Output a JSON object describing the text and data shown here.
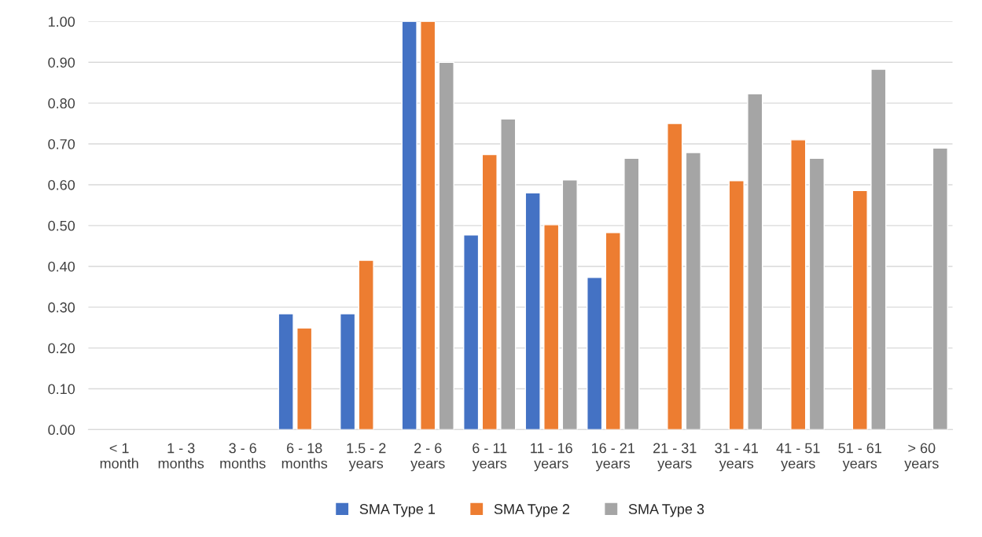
{
  "chart_data": {
    "type": "bar",
    "categories": [
      "< 1\nmonth",
      "1 - 3\nmonths",
      "3 - 6\nmonths",
      "6 - 18\nmonths",
      "1.5 - 2\nyears",
      "2 - 6\nyears",
      "6 - 11\nyears",
      "11 - 16\nyears",
      "16 - 21\nyears",
      "21 - 31\nyears",
      "31 - 41\nyears",
      "41 - 51\nyears",
      "51 - 61\nyears",
      "> 60\nyears"
    ],
    "series": [
      {
        "name": "SMA Type 1",
        "color": "#4472c4",
        "values": [
          null,
          null,
          null,
          0.284,
          0.284,
          1.0,
          0.477,
          0.58,
          0.373,
          null,
          null,
          null,
          null,
          null
        ]
      },
      {
        "name": "SMA Type 2",
        "color": "#ed7d31",
        "values": [
          null,
          null,
          null,
          0.249,
          0.415,
          1.0,
          0.674,
          0.502,
          0.483,
          0.75,
          0.61,
          0.71,
          0.586,
          null
        ]
      },
      {
        "name": "SMA Type 3",
        "color": "#a5a5a5",
        "values": [
          null,
          null,
          null,
          null,
          null,
          0.9,
          0.761,
          0.612,
          0.665,
          0.679,
          0.823,
          0.665,
          0.883,
          0.69
        ]
      }
    ],
    "ylim": [
      0,
      1.0
    ],
    "yticks": [
      {
        "value": 0,
        "label": "0.00"
      },
      {
        "value": 0.1,
        "label": "0.10"
      },
      {
        "value": 0.2,
        "label": "0.20"
      },
      {
        "value": 0.3,
        "label": "0.30"
      },
      {
        "value": 0.4,
        "label": "0.40"
      },
      {
        "value": 0.5,
        "label": "0.50"
      },
      {
        "value": 0.6,
        "label": "0.60"
      },
      {
        "value": 0.7,
        "label": "0.70"
      },
      {
        "value": 0.8,
        "label": "0.80"
      },
      {
        "value": 0.9,
        "label": "0.90"
      },
      {
        "value": 1.0,
        "label": "1.00"
      }
    ],
    "grid": "y",
    "legend": "bottom"
  }
}
